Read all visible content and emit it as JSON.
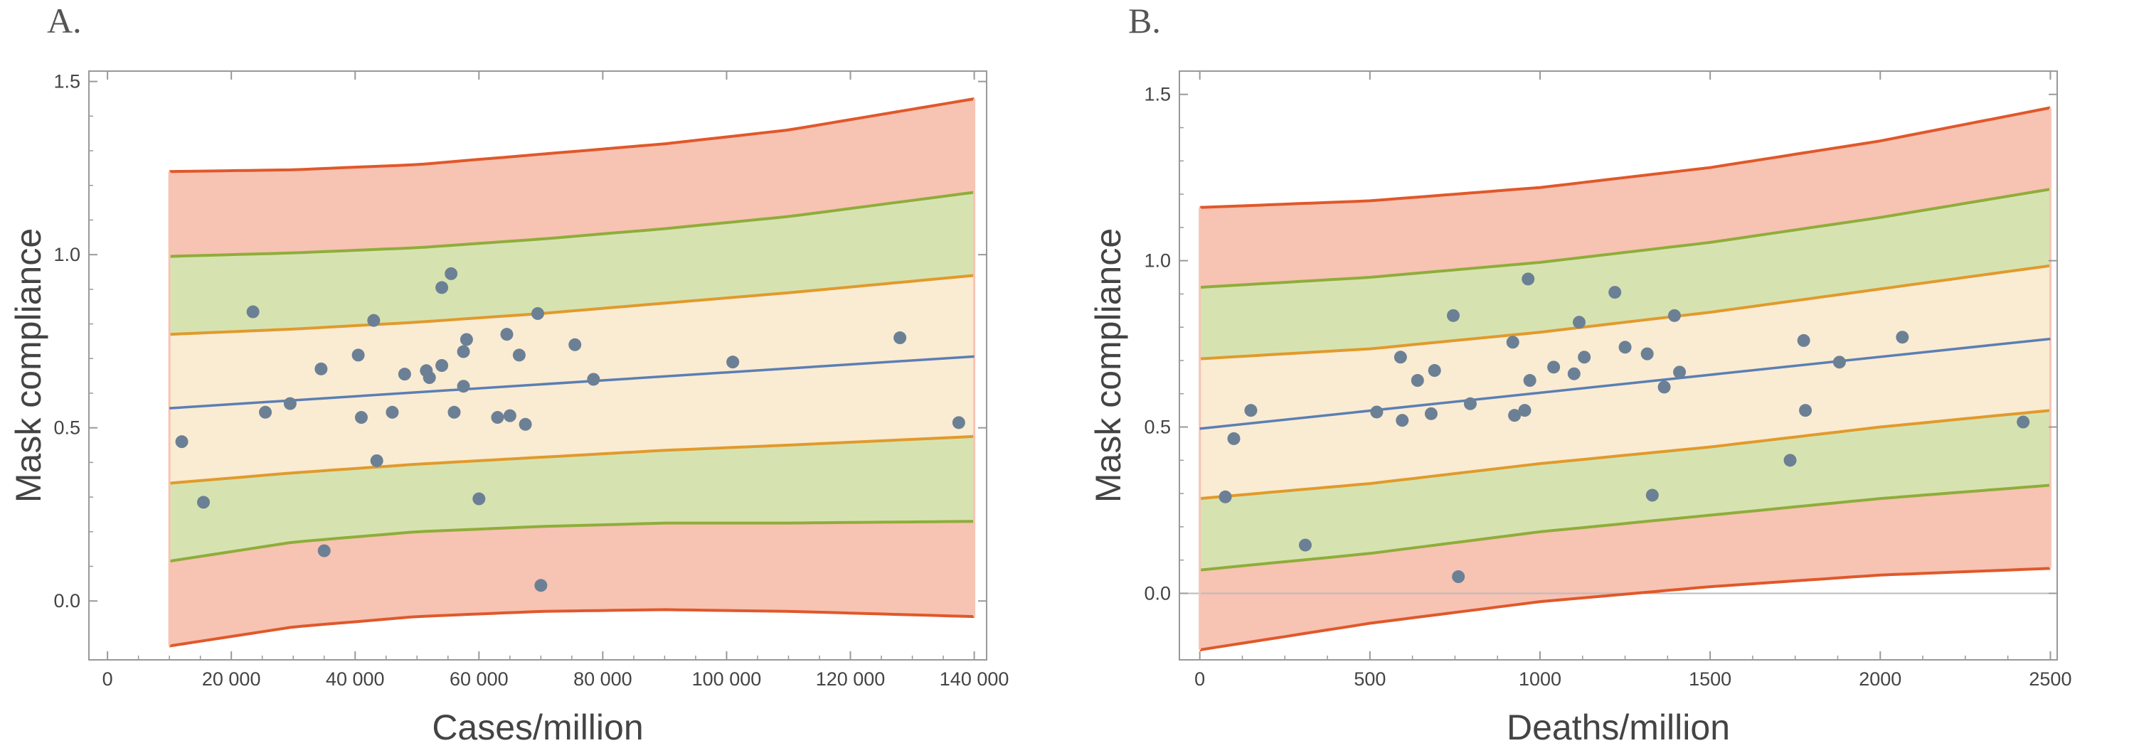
{
  "chart_data": [
    {
      "type": "scatter",
      "panel_label": "A.",
      "xlabel": "Cases/million",
      "ylabel": "Mask compliance",
      "xlim": [
        -3000,
        142000
      ],
      "ylim": [
        -0.17,
        1.53
      ],
      "x_ticks": [
        0,
        20000,
        40000,
        60000,
        80000,
        100000,
        120000,
        140000
      ],
      "x_tick_labels": [
        "0",
        "20 000",
        "40 000",
        "60 000",
        "80 000",
        "100 000",
        "120 000",
        "140 000"
      ],
      "y_ticks": [
        0.0,
        0.5,
        1.0,
        1.5
      ],
      "y_tick_labels": [
        "0.0",
        "0.5",
        "1.0",
        "1.5"
      ],
      "fit": {
        "x_range": [
          10000,
          140000
        ],
        "intercept": 0.545,
        "slope": 1.15e-06
      },
      "bands": {
        "x": [
          10000,
          30000,
          50000,
          70000,
          90000,
          110000,
          140000
        ],
        "outer_upper": [
          1.24,
          1.245,
          1.26,
          1.29,
          1.32,
          1.36,
          1.45
        ],
        "middle_upper": [
          0.995,
          1.005,
          1.02,
          1.045,
          1.075,
          1.11,
          1.18
        ],
        "inner_upper": [
          0.77,
          0.785,
          0.805,
          0.83,
          0.86,
          0.89,
          0.94
        ],
        "inner_lower": [
          0.34,
          0.37,
          0.395,
          0.415,
          0.435,
          0.45,
          0.475
        ],
        "middle_lower": [
          0.115,
          0.17,
          0.2,
          0.215,
          0.225,
          0.225,
          0.23
        ],
        "outer_lower": [
          -0.13,
          -0.075,
          -0.045,
          -0.03,
          -0.025,
          -0.03,
          -0.045
        ]
      },
      "points": [
        {
          "x": 12000,
          "y": 0.46
        },
        {
          "x": 15500,
          "y": 0.285
        },
        {
          "x": 23500,
          "y": 0.835
        },
        {
          "x": 25500,
          "y": 0.545
        },
        {
          "x": 29500,
          "y": 0.57
        },
        {
          "x": 34500,
          "y": 0.67
        },
        {
          "x": 35000,
          "y": 0.145
        },
        {
          "x": 40500,
          "y": 0.71
        },
        {
          "x": 41000,
          "y": 0.53
        },
        {
          "x": 43000,
          "y": 0.81
        },
        {
          "x": 43500,
          "y": 0.405
        },
        {
          "x": 46000,
          "y": 0.545
        },
        {
          "x": 48000,
          "y": 0.655
        },
        {
          "x": 51500,
          "y": 0.665
        },
        {
          "x": 52000,
          "y": 0.645
        },
        {
          "x": 54000,
          "y": 0.68
        },
        {
          "x": 54000,
          "y": 0.905
        },
        {
          "x": 55500,
          "y": 0.945
        },
        {
          "x": 56000,
          "y": 0.545
        },
        {
          "x": 57500,
          "y": 0.62
        },
        {
          "x": 57500,
          "y": 0.72
        },
        {
          "x": 58000,
          "y": 0.755
        },
        {
          "x": 60000,
          "y": 0.295
        },
        {
          "x": 63000,
          "y": 0.53
        },
        {
          "x": 64500,
          "y": 0.77
        },
        {
          "x": 65000,
          "y": 0.535
        },
        {
          "x": 66500,
          "y": 0.71
        },
        {
          "x": 67500,
          "y": 0.51
        },
        {
          "x": 69500,
          "y": 0.83
        },
        {
          "x": 70000,
          "y": 0.045
        },
        {
          "x": 75500,
          "y": 0.74
        },
        {
          "x": 78500,
          "y": 0.64
        },
        {
          "x": 101000,
          "y": 0.69
        },
        {
          "x": 128000,
          "y": 0.76
        },
        {
          "x": 137500,
          "y": 0.515
        }
      ]
    },
    {
      "type": "scatter",
      "panel_label": "B.",
      "xlabel": "Deaths/million",
      "ylabel": "Mask compliance",
      "xlim": [
        -60,
        2520
      ],
      "ylim": [
        -0.2,
        1.57
      ],
      "x_ticks": [
        0,
        500,
        1000,
        1500,
        2000,
        2500
      ],
      "x_tick_labels": [
        "0",
        "500",
        "1000",
        "1500",
        "2000",
        "2500"
      ],
      "y_ticks": [
        0.0,
        0.5,
        1.0,
        1.5
      ],
      "y_tick_labels": [
        "0.0",
        "0.5",
        "1.0",
        "1.5"
      ],
      "zero_line": true,
      "fit": {
        "x_range": [
          0,
          2500
        ],
        "intercept": 0.495,
        "slope": 0.000108
      },
      "bands": {
        "x": [
          0,
          500,
          1000,
          1500,
          2000,
          2500
        ],
        "outer_upper": [
          1.16,
          1.18,
          1.22,
          1.28,
          1.36,
          1.46
        ],
        "middle_upper": [
          0.92,
          0.95,
          0.995,
          1.055,
          1.13,
          1.215
        ],
        "inner_upper": [
          0.705,
          0.735,
          0.785,
          0.845,
          0.915,
          0.985
        ],
        "inner_lower": [
          0.285,
          0.33,
          0.39,
          0.44,
          0.5,
          0.55
        ],
        "middle_lower": [
          0.07,
          0.12,
          0.185,
          0.235,
          0.285,
          0.325
        ],
        "outer_lower": [
          -0.17,
          -0.09,
          -0.025,
          0.02,
          0.055,
          0.075
        ]
      },
      "points": [
        {
          "x": 75,
          "y": 0.29
        },
        {
          "x": 100,
          "y": 0.465
        },
        {
          "x": 150,
          "y": 0.55
        },
        {
          "x": 310,
          "y": 0.145
        },
        {
          "x": 520,
          "y": 0.545
        },
        {
          "x": 590,
          "y": 0.71
        },
        {
          "x": 595,
          "y": 0.52
        },
        {
          "x": 640,
          "y": 0.64
        },
        {
          "x": 680,
          "y": 0.54
        },
        {
          "x": 690,
          "y": 0.67
        },
        {
          "x": 745,
          "y": 0.835
        },
        {
          "x": 760,
          "y": 0.05
        },
        {
          "x": 795,
          "y": 0.57
        },
        {
          "x": 920,
          "y": 0.755
        },
        {
          "x": 925,
          "y": 0.535
        },
        {
          "x": 955,
          "y": 0.55
        },
        {
          "x": 965,
          "y": 0.945
        },
        {
          "x": 970,
          "y": 0.64
        },
        {
          "x": 1040,
          "y": 0.68
        },
        {
          "x": 1100,
          "y": 0.66
        },
        {
          "x": 1115,
          "y": 0.815
        },
        {
          "x": 1130,
          "y": 0.71
        },
        {
          "x": 1220,
          "y": 0.905
        },
        {
          "x": 1250,
          "y": 0.74
        },
        {
          "x": 1315,
          "y": 0.72
        },
        {
          "x": 1330,
          "y": 0.295
        },
        {
          "x": 1365,
          "y": 0.62
        },
        {
          "x": 1395,
          "y": 0.835
        },
        {
          "x": 1410,
          "y": 0.665
        },
        {
          "x": 1735,
          "y": 0.4
        },
        {
          "x": 1775,
          "y": 0.76
        },
        {
          "x": 1780,
          "y": 0.55
        },
        {
          "x": 1880,
          "y": 0.695
        },
        {
          "x": 2065,
          "y": 0.77
        },
        {
          "x": 2420,
          "y": 0.515
        }
      ]
    }
  ],
  "colors": {
    "outer_fill": "#f7c3b3",
    "outer_line": "#e0582a",
    "middle_fill": "#d6e3b1",
    "middle_line": "#8fad3a",
    "inner_fill": "#faebd3",
    "inner_line": "#e19a2b",
    "fit_line": "#5a7fb3",
    "point": "#6b8095",
    "frame": "#999999",
    "zero_line": "#bbbbbb"
  }
}
